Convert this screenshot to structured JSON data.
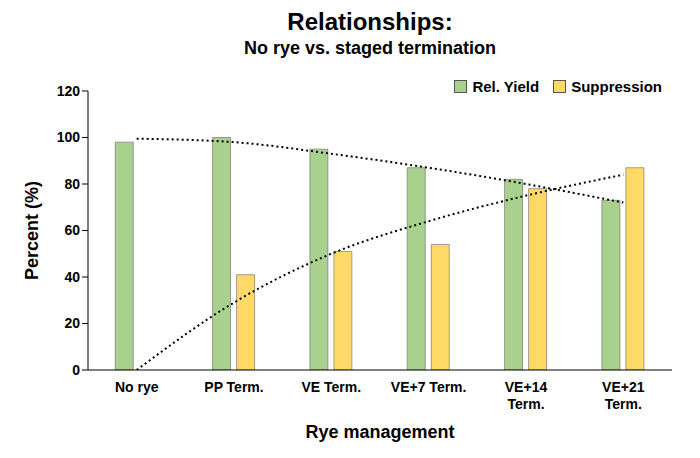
{
  "chart_data": {
    "type": "bar",
    "title": "Relationships:",
    "subtitle": "No rye vs. staged termination",
    "x_label": "Rye management",
    "y_label": "Percent (%)",
    "categories": [
      "No rye",
      "PP Term.",
      "VE Term.",
      "VE+7 Term.",
      "VE+14 Term.",
      "VE+21 Term."
    ],
    "series": [
      {
        "name": "Rel. Yield",
        "type": "bar",
        "color": "#a9d18e",
        "values": [
          98,
          100,
          95,
          87,
          82,
          73
        ]
      },
      {
        "name": "Suppression",
        "type": "bar",
        "color": "#ffd966",
        "values": [
          null,
          41,
          51,
          54,
          78,
          87
        ]
      },
      {
        "type": "line",
        "color": "#000000",
        "line_style": "dotted",
        "values": [
          99.5,
          98,
          93,
          87,
          80,
          72
        ]
      },
      {
        "type": "line",
        "color": "#000000",
        "line_style": "dotted",
        "values": [
          0,
          29,
          50,
          64,
          75,
          84
        ]
      }
    ],
    "ylim": [
      0,
      120
    ],
    "yticks": [
      0,
      20,
      40,
      60,
      80,
      100,
      120
    ],
    "grid": false,
    "legend": "upper right"
  }
}
